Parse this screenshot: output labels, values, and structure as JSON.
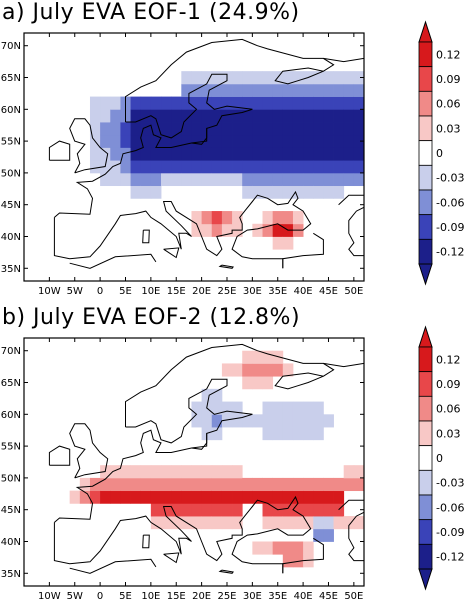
{
  "chart_data": [
    {
      "type": "heatmap",
      "title": "a) July EVA EOF-1 (24.9%)",
      "x_tick_labels": [
        "10W",
        "5W",
        "0",
        "5E",
        "10E",
        "15E",
        "20E",
        "25E",
        "30E",
        "35E",
        "40E",
        "45E",
        "50E"
      ],
      "y_tick_labels": [
        "70N",
        "65N",
        "60N",
        "55N",
        "50N",
        "45N",
        "40N",
        "35N"
      ],
      "colorbar": {
        "levels": [
          "0.12",
          "0.09",
          "0.06",
          "0.03",
          "0",
          "-0.03",
          "-0.06",
          "-0.09",
          "-0.12"
        ],
        "colors": [
          "#d7191c",
          "#e8474a",
          "#f08a88",
          "#f8c8c6",
          "#ffffff",
          "#c9cfeb",
          "#7f8fd6",
          "#3a43b8",
          "#1c1f8a"
        ]
      },
      "patterns": [
        {
          "type": "neg-band",
          "lon_range": [
            15,
            50
          ],
          "lat_range": [
            46,
            66
          ],
          "level": "-0.12"
        },
        {
          "type": "pos-blob",
          "lon_range": [
            20,
            27
          ],
          "lat_range": [
            40,
            45
          ],
          "level": "0.09"
        },
        {
          "type": "pos-blob",
          "lon_range": [
            33,
            40
          ],
          "lat_range": [
            39,
            44
          ],
          "level": "0.12"
        }
      ]
    },
    {
      "type": "heatmap",
      "title": "b) July EVA EOF-2 (12.8%)",
      "x_tick_labels": [
        "10W",
        "5W",
        "0",
        "5E",
        "10E",
        "15E",
        "20E",
        "25E",
        "30E",
        "35E",
        "40E",
        "45E",
        "50E"
      ],
      "y_tick_labels": [
        "70N",
        "65N",
        "60N",
        "55N",
        "50N",
        "45N",
        "40N",
        "35N"
      ],
      "colorbar": {
        "levels": [
          "0.12",
          "0.09",
          "0.06",
          "0.03",
          "0",
          "-0.03",
          "-0.06",
          "-0.09",
          "-0.12"
        ],
        "colors": [
          "#d7191c",
          "#e8474a",
          "#f08a88",
          "#f8c8c6",
          "#ffffff",
          "#c9cfeb",
          "#7f8fd6",
          "#3a43b8",
          "#1c1f8a"
        ]
      },
      "patterns": [
        {
          "type": "pos-band",
          "lon_range": [
            0,
            50
          ],
          "lat_range": [
            42,
            50
          ],
          "level": "0.09"
        },
        {
          "type": "neg-spot",
          "lon_range": [
            42,
            46
          ],
          "lat_range": [
            41,
            44
          ],
          "level": "-0.12"
        }
      ]
    }
  ]
}
